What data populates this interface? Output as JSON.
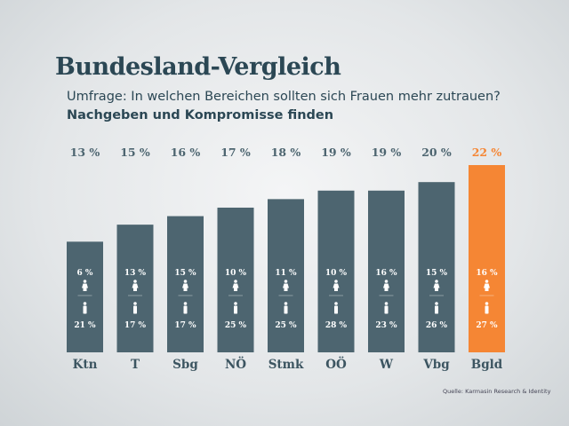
{
  "header": {
    "title": "Bundesland-Vergleich",
    "subtitle": "Umfrage: In welchen Bereichen sollten sich Frauen mehr zutrauen?",
    "subtitle2": "Nachgeben und Kompromisse finden"
  },
  "source": "Quelle: Karmasin Research & Identity",
  "chart_data": {
    "type": "bar",
    "categories": [
      "Ktn",
      "T",
      "Sbg",
      "NÖ",
      "Stmk",
      "OÖ",
      "W",
      "Vbg",
      "Bgld"
    ],
    "values": [
      13,
      15,
      16,
      17,
      18,
      19,
      19,
      20,
      22
    ],
    "value_labels": [
      "13 %",
      "15 %",
      "16 %",
      "17 %",
      "18 %",
      "19 %",
      "19 %",
      "20 %",
      "22 %"
    ],
    "female_values": [
      6,
      13,
      15,
      10,
      11,
      10,
      16,
      15,
      16
    ],
    "female_labels": [
      "6 %",
      "13 %",
      "15 %",
      "10 %",
      "11 %",
      "10 %",
      "16 %",
      "15 %",
      "16 %"
    ],
    "male_values": [
      21,
      17,
      17,
      25,
      25,
      28,
      23,
      26,
      27
    ],
    "male_labels": [
      "21 %",
      "17 %",
      "17 %",
      "25 %",
      "25 %",
      "28 %",
      "23 %",
      "26 %",
      "27 %"
    ],
    "ylim": [
      0,
      22
    ],
    "grid": false,
    "highlight_category": "Bgld",
    "colors": {
      "bar": "#4d6570",
      "highlight": "#f58634",
      "label": "#4d6570",
      "highlight_label": "#f58634"
    }
  }
}
